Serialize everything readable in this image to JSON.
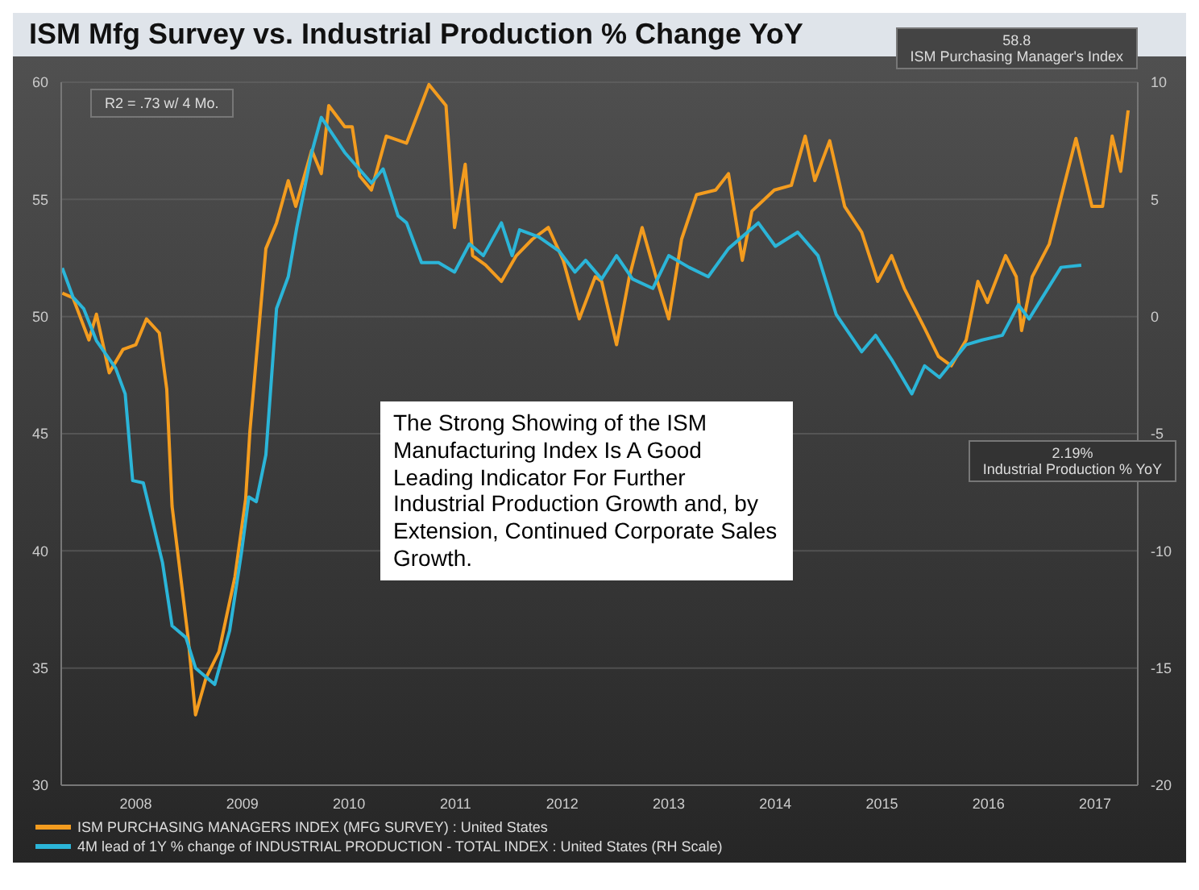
{
  "chart_data": {
    "type": "line",
    "title": "ISM Mfg Survey vs. Industrial Production %  Change  YoY",
    "x": [
      2007.81,
      2007.91,
      2008.06,
      2008.13,
      2008.25,
      2008.38,
      2008.5,
      2008.6,
      2008.72,
      2008.79,
      2008.84,
      2008.99,
      2009.06,
      2009.16,
      2009.28,
      2009.43,
      2009.53,
      2009.57,
      2009.72,
      2009.82,
      2009.93,
      2010.0,
      2010.15,
      2010.24,
      2010.31,
      2010.46,
      2010.53,
      2010.6,
      2010.71,
      2010.85,
      2011.04,
      2011.25,
      2011.41,
      2011.49,
      2011.59,
      2011.66,
      2011.78,
      2011.93,
      2012.07,
      2012.22,
      2012.37,
      2012.51,
      2012.66,
      2012.81,
      2012.87,
      2013.01,
      2013.13,
      2013.25,
      2013.38,
      2013.5,
      2013.62,
      2013.76,
      2013.94,
      2014.06,
      2014.19,
      2014.28,
      2014.49,
      2014.65,
      2014.78,
      2014.87,
      2015.01,
      2015.15,
      2015.31,
      2015.46,
      2015.59,
      2015.71,
      2015.9,
      2016.03,
      2016.15,
      2016.29,
      2016.4,
      2016.49,
      2016.66,
      2016.76,
      2016.81,
      2016.91,
      2017.07,
      2017.32,
      2017.47,
      2017.57,
      2017.66,
      2017.74,
      2017.81
    ],
    "series": [
      {
        "name": "ISM PURCHASING MANAGERS INDEX (MFG SURVEY) : United States",
        "color": "#f39c1f",
        "values": [
          51.0,
          50.8,
          49.0,
          50.1,
          47.6,
          48.6,
          48.8,
          49.9,
          49.3,
          46.9,
          41.9,
          36.3,
          33.0,
          34.6,
          35.7,
          38.9,
          42.2,
          45.1,
          52.9,
          54.0,
          55.8,
          54.7,
          57.1,
          56.1,
          59.0,
          58.1,
          58.1,
          56.0,
          55.4,
          57.7,
          57.4,
          59.9,
          59.0,
          53.8,
          56.5,
          52.6,
          52.2,
          51.5,
          52.6,
          53.3,
          53.8,
          52.4,
          49.9,
          51.7,
          51.5,
          48.8,
          51.7,
          53.8,
          51.7,
          49.9,
          53.3,
          55.2,
          55.4,
          56.1,
          52.4,
          54.5,
          55.4,
          55.6,
          57.7,
          55.8,
          57.5,
          54.7,
          53.6,
          51.5,
          52.6,
          51.2,
          49.5,
          48.3,
          47.9,
          49.0,
          51.5,
          50.6,
          52.6,
          51.7,
          49.4,
          51.7,
          53.1,
          57.6,
          54.7,
          54.7,
          57.7,
          56.2,
          58.8
        ]
      },
      {
        "name": "4M lead of 1Y % change of INDUSTRIAL PRODUCTION - TOTAL INDEX : United States (RH Scale)",
        "color": "#2bb5d8",
        "axis": "y2",
        "x": [
          2007.81,
          2007.91,
          2008.01,
          2008.13,
          2008.31,
          2008.4,
          2008.47,
          2008.57,
          2008.75,
          2008.84,
          2008.97,
          2009.06,
          2009.24,
          2009.38,
          2009.49,
          2009.56,
          2009.63,
          2009.72,
          2009.82,
          2009.93,
          2010.01,
          2010.15,
          2010.24,
          2010.46,
          2010.71,
          2010.82,
          2010.96,
          2011.04,
          2011.18,
          2011.34,
          2011.49,
          2011.63,
          2011.76,
          2011.93,
          2012.03,
          2012.1,
          2012.28,
          2012.47,
          2012.62,
          2012.72,
          2012.87,
          2013.01,
          2013.16,
          2013.35,
          2013.5,
          2013.69,
          2013.87,
          2014.06,
          2014.34,
          2014.5,
          2014.71,
          2014.9,
          2015.07,
          2015.31,
          2015.44,
          2015.6,
          2015.78,
          2015.9,
          2016.04,
          2016.29,
          2016.44,
          2016.63,
          2016.78,
          2016.88,
          2017.18,
          2017.37
        ],
        "values": [
          2.07,
          0.83,
          0.34,
          -1.03,
          -2.2,
          -3.3,
          -7.0,
          -7.1,
          -10.5,
          -13.2,
          -13.7,
          -15.0,
          -15.7,
          -13.4,
          -10.1,
          -7.7,
          -7.9,
          -5.9,
          0.34,
          1.7,
          3.8,
          7.0,
          8.5,
          7.0,
          5.7,
          6.3,
          4.3,
          4.0,
          2.3,
          2.3,
          1.9,
          3.1,
          2.6,
          4.0,
          2.6,
          3.7,
          3.4,
          2.8,
          1.9,
          2.4,
          1.6,
          2.6,
          1.6,
          1.2,
          2.6,
          2.1,
          1.7,
          2.9,
          4.0,
          3.0,
          3.6,
          2.6,
          0.1,
          -1.5,
          -0.8,
          -1.9,
          -3.3,
          -2.1,
          -2.6,
          -1.2,
          -1.0,
          -0.8,
          0.5,
          -0.1,
          2.1,
          2.19
        ]
      }
    ],
    "xlim": [
      2007.8,
      2017.9
    ],
    "xticks": [
      {
        "value": 2008.5,
        "label": "2008"
      },
      {
        "value": 2009.5,
        "label": "2009"
      },
      {
        "value": 2010.5,
        "label": "2010"
      },
      {
        "value": 2011.5,
        "label": "2011"
      },
      {
        "value": 2012.5,
        "label": "2012"
      },
      {
        "value": 2013.5,
        "label": "2013"
      },
      {
        "value": 2014.5,
        "label": "2014"
      },
      {
        "value": 2015.5,
        "label": "2015"
      },
      {
        "value": 2016.5,
        "label": "2016"
      },
      {
        "value": 2017.5,
        "label": "2017"
      }
    ],
    "ylim": [
      30,
      60
    ],
    "yticks": [
      30,
      35,
      40,
      45,
      50,
      55,
      60
    ],
    "y2lim": [
      -20,
      10
    ],
    "y2ticks": [
      -20,
      -15,
      -10,
      -5,
      0,
      5,
      10
    ],
    "grid": "y",
    "legend": "bottom",
    "marker": "none",
    "line_style": "solid",
    "annotations": [
      "R2 = .73 w/ 4 Mo.",
      "58.8\nISM Purchasing Manager's Index",
      "2.19%\nIndustrial Production % YoY",
      "The Strong Showing of the ISM Manufacturing Index Is A Good Leading Indicator For Further Industrial Production Growth and, by Extension, Continued Corporate Sales Growth."
    ]
  }
}
